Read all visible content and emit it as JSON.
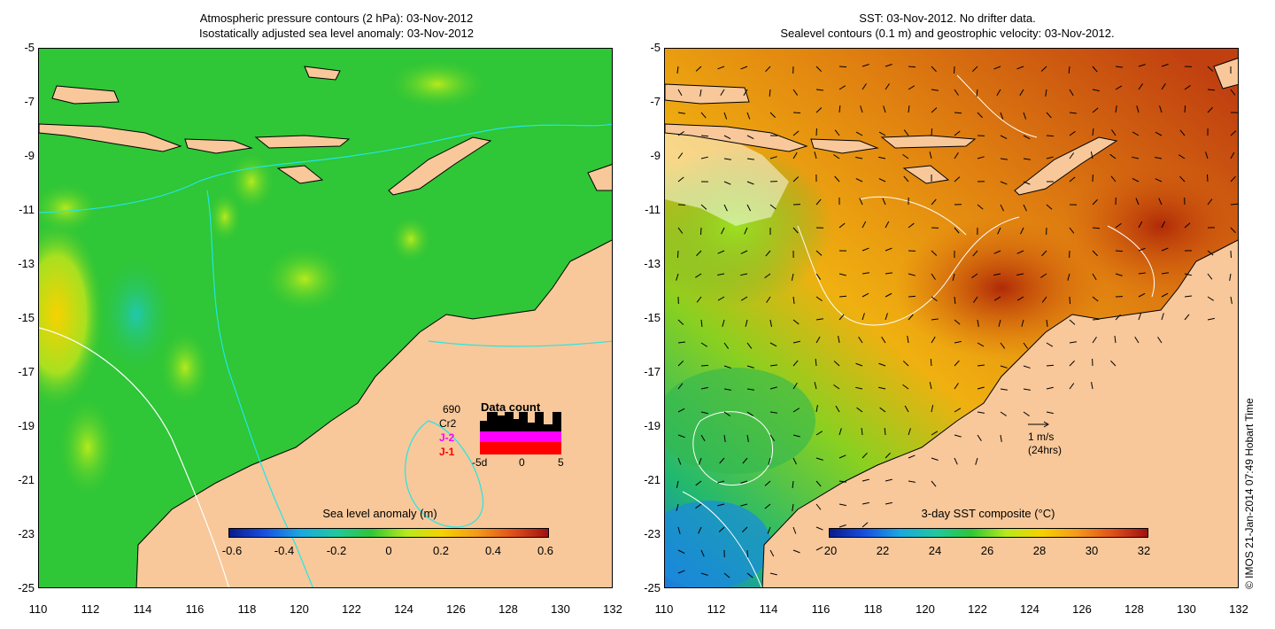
{
  "left_map": {
    "title_line1": "Atmospheric pressure contours (2 hPa): 03-Nov-2012",
    "title_line2": "Isostatically adjusted sea level anomaly: 03-Nov-2012",
    "colorbar_title": "Sea level anomaly (m)",
    "colorbar_labels": [
      "-0.6",
      "-0.4",
      "-0.2",
      "0",
      "0.2",
      "0.4",
      "0.6"
    ],
    "data_count": {
      "title": "Data count",
      "count": "690",
      "satellites": [
        "Cr2",
        "J-2",
        "J-1"
      ],
      "satellite_colors": [
        "#000000",
        "#ff00ff",
        "#ff0000"
      ],
      "axis_labels": [
        "-5d",
        "0",
        "5"
      ]
    }
  },
  "right_map": {
    "title_line1": "SST: 03-Nov-2012. No drifter data.",
    "title_line2": "Sealevel contours (0.1 m) and geostrophic velocity: 03-Nov-2012.",
    "colorbar_title": "3-day SST composite (°C)",
    "colorbar_labels": [
      "20",
      "22",
      "24",
      "26",
      "28",
      "30",
      "32"
    ],
    "scale_arrow_label1": "1 m/s",
    "scale_arrow_label2": "(24hrs)"
  },
  "axes": {
    "lat_labels": [
      "-5",
      "-7",
      "-9",
      "-11",
      "-13",
      "-15",
      "-17",
      "-19",
      "-21",
      "-23",
      "-25"
    ],
    "lon_labels": [
      "110",
      "112",
      "114",
      "116",
      "118",
      "120",
      "122",
      "124",
      "126",
      "128",
      "130",
      "132"
    ]
  },
  "credit": "© IMOS 21-Jan-2014 07:49 Hobart Time",
  "colors": {
    "land": "#f8c89a",
    "sla_ocean": "#2fc637",
    "sst_warm": "#d8650e",
    "sst_cool": "#3fb83a"
  }
}
